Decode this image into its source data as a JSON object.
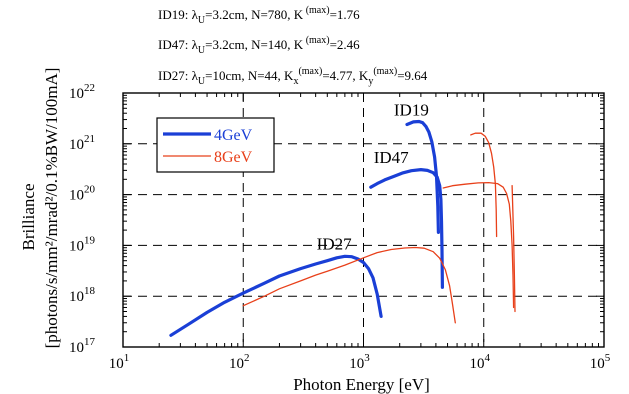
{
  "chart_data": {
    "type": "line",
    "xscale": "log",
    "yscale": "log",
    "xlim": [
      10,
      100000
    ],
    "ylim": [
      1e+17,
      1e+22
    ],
    "grid": true,
    "legend_position": "top-left",
    "xlabel": "Photon Energy [eV]",
    "ylabel_line1": "Brilliance",
    "ylabel_line2": "[photons/s/mm²/mrad²/0.1%BW/100mA]",
    "x_ticks": [
      {
        "base": "10",
        "exp": "1",
        "value": 10
      },
      {
        "base": "10",
        "exp": "2",
        "value": 100
      },
      {
        "base": "10",
        "exp": "3",
        "value": 1000
      },
      {
        "base": "10",
        "exp": "4",
        "value": 10000
      },
      {
        "base": "10",
        "exp": "5",
        "value": 100000
      }
    ],
    "y_ticks": [
      {
        "base": "10",
        "exp": "17",
        "value": 1e+17
      },
      {
        "base": "10",
        "exp": "18",
        "value": 1e+18
      },
      {
        "base": "10",
        "exp": "19",
        "value": 1e+19
      },
      {
        "base": "10",
        "exp": "20",
        "value": 1e+20
      },
      {
        "base": "10",
        "exp": "21",
        "value": 1e+21
      },
      {
        "base": "10",
        "exp": "22",
        "value": 1e+22
      }
    ],
    "parameters": [
      {
        "id": "ID19",
        "text": "ID19: λ",
        "sub": "U",
        "rest": "=3.2cm, N=780, K",
        "k_sup": "(max)",
        "k_val": "=1.76"
      },
      {
        "id": "ID47",
        "text": "ID47: λ",
        "sub": "U",
        "rest": "=3.2cm, N=140, K",
        "k_sup": "(max)",
        "k_val": "=2.46"
      },
      {
        "id": "ID27",
        "text": "ID27: λ",
        "sub": "U",
        "rest": "=10cm, N=44, K",
        "kx_sub": "x",
        "kx_sup": "(max)",
        "kx_val": "=4.77, K",
        "ky_sub": "y",
        "ky_sup": "(max)",
        "ky_val": "=9.64"
      }
    ],
    "series": [
      {
        "name": "4GeV",
        "color": "#1a3fd6",
        "width": 3.2,
        "curves": [
          {
            "label": "ID27",
            "points": [
              [
                25,
                1.7e+17
              ],
              [
                35,
                2.8e+17
              ],
              [
                50,
                4.8e+17
              ],
              [
                70,
                7.6e+17
              ],
              [
                100,
                1.15e+18
              ],
              [
                150,
                1.8e+18
              ],
              [
                200,
                2.5e+18
              ],
              [
                300,
                3.5e+18
              ],
              [
                400,
                4.3e+18
              ],
              [
                500,
                5e+18
              ],
              [
                600,
                5.7e+18
              ],
              [
                700,
                6.1e+18
              ],
              [
                800,
                6e+18
              ],
              [
                900,
                5.4e+18
              ],
              [
                1000,
                4.6e+18
              ],
              [
                1100,
                3.5e+18
              ],
              [
                1200,
                2.3e+18
              ],
              [
                1300,
                1.1e+18
              ],
              [
                1400,
                4e+17
              ]
            ]
          },
          {
            "label": "ID47",
            "points": [
              [
                1150,
                1.4e+20
              ],
              [
                1300,
                1.65e+20
              ],
              [
                1500,
                1.95e+20
              ],
              [
                1800,
                2.3e+20
              ],
              [
                2100,
                2.65e+20
              ],
              [
                2500,
                2.95e+20
              ],
              [
                3000,
                3.1e+20
              ],
              [
                3400,
                3e+20
              ],
              [
                3800,
                2.7e+20
              ],
              [
                4100,
                2.2e+20
              ],
              [
                4300,
                1.5e+20
              ],
              [
                4400,
                8e+19
              ],
              [
                4450,
                3e+19
              ],
              [
                4500,
                8e+18
              ],
              [
                4530,
                1.5e+18
              ]
            ]
          },
          {
            "label": "ID19",
            "points": [
              [
                2300,
                2.4e+21
              ],
              [
                2600,
                2.7e+21
              ],
              [
                2900,
                2.75e+21
              ],
              [
                3100,
                2.6e+21
              ],
              [
                3300,
                2.2e+21
              ],
              [
                3500,
                1.7e+21
              ],
              [
                3700,
                1.1e+21
              ],
              [
                3900,
                5.5e+20
              ],
              [
                4050,
                2.3e+20
              ],
              [
                4150,
                6e+19
              ],
              [
                4200,
                1.8e+19
              ]
            ]
          }
        ]
      },
      {
        "name": "8GeV",
        "color": "#e8401a",
        "width": 1.3,
        "curves": [
          {
            "label": "ID27",
            "points": [
              [
                100,
                6.5e+17
              ],
              [
                150,
                1e+18
              ],
              [
                200,
                1.4e+18
              ],
              [
                300,
                2e+18
              ],
              [
                400,
                2.6e+18
              ],
              [
                500,
                3.1e+18
              ],
              [
                700,
                4.1e+18
              ],
              [
                1000,
                5.7e+18
              ],
              [
                1300,
                7.2e+18
              ],
              [
                1700,
                8.3e+18
              ],
              [
                2200,
                8.9e+18
              ],
              [
                2700,
                9.1e+18
              ],
              [
                3200,
                8.8e+18
              ],
              [
                3800,
                7.5e+18
              ],
              [
                4300,
                5.6e+18
              ],
              [
                4800,
                3.3e+18
              ],
              [
                5200,
                1.6e+18
              ],
              [
                5500,
                7e+17
              ],
              [
                5800,
                3e+17
              ]
            ]
          },
          {
            "label": "ID47",
            "points": [
              [
                4600,
                1.35e+20
              ],
              [
                5500,
                1.5e+20
              ],
              [
                7000,
                1.6e+20
              ],
              [
                9000,
                1.7e+20
              ],
              [
                11000,
                1.72e+20
              ],
              [
                13000,
                1.65e+20
              ],
              [
                14500,
                1.4e+20
              ],
              [
                15500,
                1.05e+20
              ],
              [
                16300,
                6.5e+19
              ],
              [
                16800,
                3e+19
              ],
              [
                17200,
                1e+19
              ],
              [
                17500,
                2.5e+18
              ],
              [
                17700,
                6e+17
              ]
            ]
          },
          {
            "label": "ID19",
            "points": [
              [
                7800,
                1.5e+21
              ],
              [
                8500,
                1.62e+21
              ],
              [
                9500,
                1.62e+21
              ],
              [
                10300,
                1.4e+21
              ],
              [
                11000,
                1.05e+21
              ],
              [
                11600,
                6.5e+20
              ],
              [
                12100,
                3.5e+20
              ],
              [
                12500,
                1.6e+20
              ],
              [
                12700,
                5e+19
              ],
              [
                12800,
                1.5e+19
              ]
            ]
          },
          {
            "label": "ID19-tail",
            "points": [
              [
                17200,
                1.5e+20
              ],
              [
                17700,
                1.5e+19
              ],
              [
                18000,
                2.5e+18
              ],
              [
                18200,
                5e+17
              ]
            ]
          }
        ]
      }
    ],
    "legend": [
      {
        "name": "4GeV",
        "color": "#1a3fd6"
      },
      {
        "name": "8GeV",
        "color": "#e8401a"
      }
    ],
    "curve_labels": [
      {
        "text": "ID19",
        "x": 2500,
        "y": 3.6e+21
      },
      {
        "text": "ID47",
        "x": 1700,
        "y": 4.2e+20
      },
      {
        "text": "ID27",
        "x": 570,
        "y": 8.3e+18
      }
    ]
  }
}
